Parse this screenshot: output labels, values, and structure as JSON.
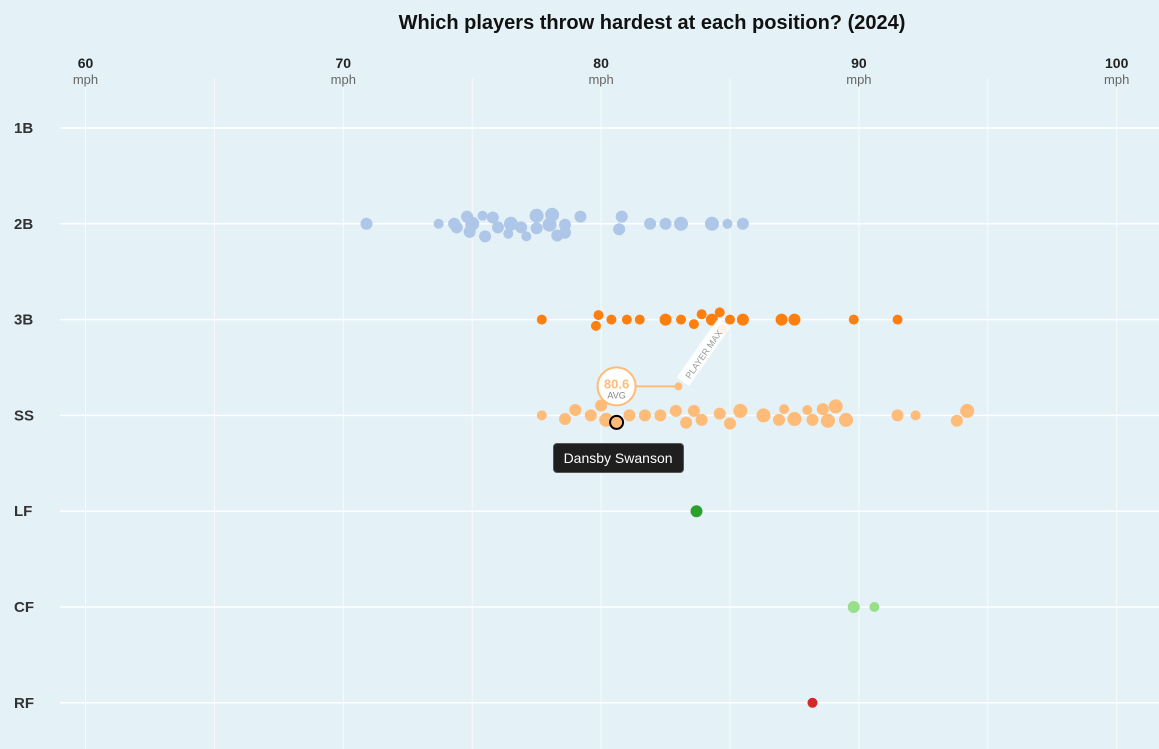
{
  "chart_data": {
    "type": "scatter",
    "title": "Which players throw hardest at each position? (2024)",
    "x_unit": "mph",
    "xlim": [
      59,
      101.7
    ],
    "x_ticks": [
      "60",
      "70",
      "80",
      "90",
      "100"
    ],
    "categories": [
      "1B",
      "2B",
      "3B",
      "SS",
      "LF",
      "CF",
      "RF"
    ],
    "grid": true,
    "colors": {
      "2B": "#aec7e8",
      "3B": "#ff7f0e",
      "SS": "#ffbb78",
      "LF": "#2ca02c",
      "CF": "#98df8a",
      "RF": "#d62728"
    },
    "series": [
      {
        "category": "1B",
        "points": []
      },
      {
        "category": "2B",
        "points": [
          [
            70.9,
            0,
            6
          ],
          [
            73.7,
            0,
            5
          ],
          [
            74.3,
            0,
            6
          ],
          [
            74.8,
            -0.8,
            6
          ],
          [
            74.4,
            0.4,
            6
          ],
          [
            75.0,
            0,
            7
          ],
          [
            74.9,
            0.9,
            6
          ],
          [
            75.4,
            -0.9,
            5
          ],
          [
            75.8,
            -0.7,
            6
          ],
          [
            75.5,
            1.4,
            6
          ],
          [
            76.0,
            0.4,
            6
          ],
          [
            76.5,
            0,
            7
          ],
          [
            76.4,
            1.1,
            5
          ],
          [
            76.9,
            0.4,
            6
          ],
          [
            77.5,
            -0.9,
            7
          ],
          [
            77.5,
            0.5,
            6
          ],
          [
            77.1,
            1.4,
            5
          ],
          [
            78.0,
            0.1,
            7
          ],
          [
            78.1,
            -1.0,
            7
          ],
          [
            78.6,
            0.1,
            6
          ],
          [
            78.3,
            1.3,
            6
          ],
          [
            79.2,
            -0.8,
            6
          ],
          [
            78.6,
            1.0,
            6
          ],
          [
            80.7,
            0.6,
            6
          ],
          [
            80.8,
            -0.8,
            6
          ],
          [
            81.9,
            0,
            6
          ],
          [
            82.5,
            0,
            6
          ],
          [
            83.1,
            0,
            7
          ],
          [
            84.3,
            0,
            7
          ],
          [
            84.9,
            0,
            5
          ],
          [
            85.5,
            0,
            6
          ]
        ]
      },
      {
        "category": "3B",
        "points": [
          [
            77.7,
            0,
            5
          ],
          [
            79.8,
            0.7,
            5
          ],
          [
            79.9,
            -0.5,
            5
          ],
          [
            80.4,
            0,
            5
          ],
          [
            81.0,
            0,
            5
          ],
          [
            81.5,
            0,
            5
          ],
          [
            82.5,
            0,
            6
          ],
          [
            83.1,
            0,
            5
          ],
          [
            83.6,
            0.5,
            5
          ],
          [
            83.9,
            -0.6,
            5
          ],
          [
            84.3,
            0,
            6
          ],
          [
            84.7,
            1.1,
            5
          ],
          [
            84.6,
            -0.8,
            5
          ],
          [
            85.0,
            0,
            5
          ],
          [
            85.5,
            0,
            6
          ],
          [
            87.0,
            0,
            6
          ],
          [
            87.5,
            0,
            6
          ],
          [
            89.8,
            0,
            5
          ],
          [
            91.5,
            0,
            5
          ]
        ]
      },
      {
        "category": "SS",
        "points": [
          [
            77.7,
            0,
            5
          ],
          [
            78.6,
            0.4,
            6
          ],
          [
            79.0,
            -0.6,
            6
          ],
          [
            79.6,
            0,
            6
          ],
          [
            80.0,
            -1.1,
            6
          ],
          [
            80.2,
            0.5,
            7
          ],
          [
            81.1,
            0,
            6
          ],
          [
            81.7,
            0,
            6
          ],
          [
            82.3,
            0,
            6
          ],
          [
            82.9,
            -0.5,
            6
          ],
          [
            83.3,
            0.8,
            6
          ],
          [
            83.6,
            -0.5,
            6
          ],
          [
            83.9,
            0.5,
            6
          ],
          [
            84.6,
            -0.2,
            6
          ],
          [
            85.0,
            0.9,
            6
          ],
          [
            85.4,
            -0.5,
            7
          ],
          [
            86.3,
            0,
            7
          ],
          [
            86.9,
            0.5,
            6
          ],
          [
            87.1,
            -0.7,
            5
          ],
          [
            87.5,
            0.4,
            7
          ],
          [
            88.2,
            0.5,
            6
          ],
          [
            88.0,
            -0.6,
            5
          ],
          [
            88.6,
            -0.7,
            6
          ],
          [
            88.8,
            0.6,
            7
          ],
          [
            89.1,
            -1.0,
            7
          ],
          [
            89.5,
            0.5,
            7
          ],
          [
            91.5,
            0,
            6
          ],
          [
            92.2,
            0,
            5
          ],
          [
            93.8,
            0.6,
            6
          ],
          [
            94.2,
            -0.5,
            7
          ]
        ]
      },
      {
        "category": "LF",
        "points": [
          [
            83.7,
            0,
            6
          ]
        ]
      },
      {
        "category": "CF",
        "points": [
          [
            89.8,
            0,
            6
          ],
          [
            90.6,
            0,
            5
          ]
        ]
      },
      {
        "category": "RF",
        "points": [
          [
            88.2,
            0,
            5
          ]
        ]
      }
    ],
    "highlight": {
      "player": "Dansby Swanson",
      "category": "SS",
      "throw_mph": 80.6,
      "avg_label": "80.6",
      "avg_text": "AVG",
      "max_label": "PLAYER MAX",
      "max_mph": 83.0,
      "color": "#ffbb78"
    }
  }
}
